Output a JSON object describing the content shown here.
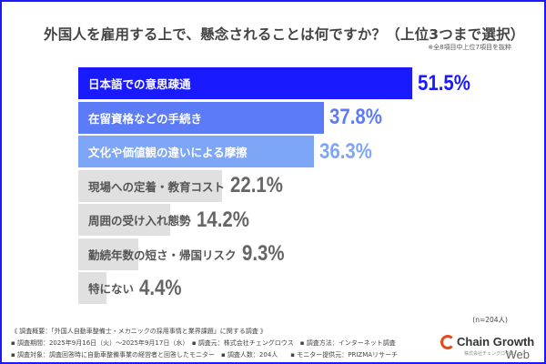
{
  "chart_data": {
    "type": "bar",
    "orientation": "horizontal",
    "title": "外国人を雇用する上で、懸念されることは何ですか？（上位3つまで選択）",
    "subtitle": "※全8項目中上位7項目を抜粋",
    "categories": [
      "日本語での意思疎通",
      "在留資格などの手続き",
      "文化や価値観の違いによる摩擦",
      "現場への定着・教育コスト",
      "周囲の受け入れ態勢",
      "勤続年数の短さ・帰国リスク",
      "特にない"
    ],
    "values": [
      51.5,
      37.8,
      36.3,
      22.1,
      14.2,
      9.3,
      4.4
    ],
    "value_labels": [
      "51.5%",
      "37.8%",
      "36.3%",
      "22.1%",
      "14.2%",
      "9.3%",
      "4.4%"
    ],
    "unit": "%",
    "bar_colors": [
      "#1a1aff",
      "#5b7cf6",
      "#7ea6f6",
      "#e0e0e0",
      "#e0e0e0",
      "#e0e0e0",
      "#e0e0e0"
    ],
    "label_colors": [
      "#ffffff",
      "#ffffff",
      "#ffffff",
      "#555555",
      "#555555",
      "#555555",
      "#555555"
    ],
    "value_colors": [
      "#1a1aff",
      "#5b7cf6",
      "#7ea6f6",
      "#666666",
      "#666666",
      "#666666",
      "#666666"
    ],
    "sample_size": "(n=204人)"
  },
  "footer": {
    "lines": [
      "《 調査概要：「外国人自動車整備士・メカニックの採用事情と業界課題」に関する調査 》",
      "▪ 調査期間：2025年9月16日（火）～2025年9月17日（水）　▪ 調査元：株式会社チェングロウス　▪ 調査方法：インターネット調査",
      "▪ 調査対象：調査回答時に自動車整備事業の経営者と回答したモニター　▪ 調査人数：204人　　▪ モニター提供元：PRIZMAリサーチ"
    ]
  },
  "logo": {
    "text": "Chain Growth",
    "sub": "株式会社チェングロウス",
    "web": "Web"
  },
  "frame_color": "#1a1aff"
}
